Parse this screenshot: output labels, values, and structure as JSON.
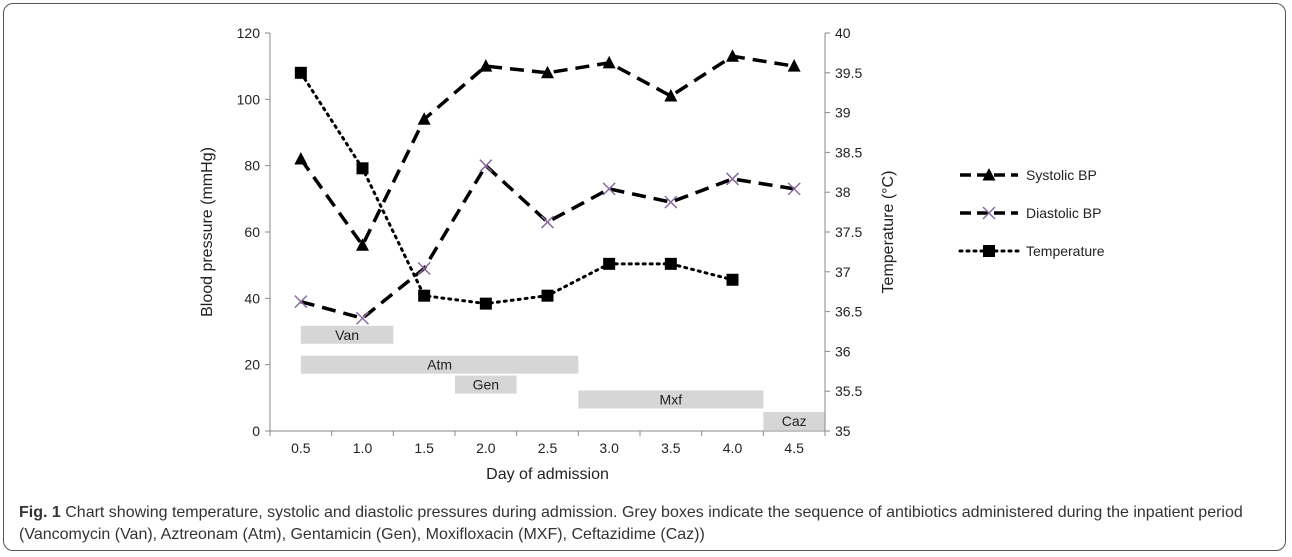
{
  "caption": {
    "label": "Fig. 1",
    "text": "Chart showing temperature, systolic and diastolic pressures during admission. Grey boxes indicate the sequence of antibiotics administered during the inpatient period (Vancomycin (Van), Aztreonam (Atm), Gentamicin (Gen), Moxifloxacin (MXF), Ceftazidime (Caz))"
  },
  "chart_data": {
    "type": "line",
    "title": "",
    "xlabel": "Day of admission",
    "ylabel": "Blood pressure (mmHg)",
    "y2label": "Temperature (°C)",
    "categories": [
      "0.5",
      "1.0",
      "1.5",
      "2.0",
      "2.5",
      "3.0",
      "3.5",
      "4.0",
      "4.5"
    ],
    "ylim": [
      0,
      120
    ],
    "yticks": [
      0,
      20,
      40,
      60,
      80,
      100,
      120
    ],
    "y2lim": [
      35,
      40
    ],
    "y2ticks": [
      "35",
      "35.5",
      "36",
      "36.5",
      "37",
      "37.5",
      "38",
      "38.5",
      "39",
      "39.5",
      "40"
    ],
    "grid": false,
    "legend_position": "right",
    "series": [
      {
        "name": "Systolic BP",
        "axis": "left",
        "marker": "triangle",
        "line": "dashed",
        "values": [
          82,
          56,
          94,
          110,
          108,
          111,
          101,
          113,
          110
        ]
      },
      {
        "name": "Diastolic BP",
        "axis": "left",
        "marker": "x",
        "line": "dashed",
        "values": [
          39,
          34,
          49,
          80,
          63,
          73,
          69,
          76,
          73
        ]
      },
      {
        "name": "Temperature",
        "axis": "right",
        "marker": "square",
        "line": "dotted",
        "values": [
          39.5,
          38.3,
          36.7,
          36.6,
          36.7,
          37.1,
          37.1,
          36.9,
          null
        ]
      }
    ],
    "antibiotic_bars": [
      {
        "label": "Van",
        "start_day": 0.5,
        "end_day": 1.25,
        "level": 29
      },
      {
        "label": "Atm",
        "start_day": 0.5,
        "end_day": 2.75,
        "level": 20
      },
      {
        "label": "Gen",
        "start_day": 1.75,
        "end_day": 2.25,
        "level": 14
      },
      {
        "label": "Mxf",
        "start_day": 2.75,
        "end_day": 4.25,
        "level": 9.5
      },
      {
        "label": "Caz",
        "start_day": 4.25,
        "end_day": 4.75,
        "level": 3
      }
    ],
    "colors": {
      "line": "#000000",
      "diastolic_marker": "#8a6a9e",
      "bar_fill": "#d6d6d6"
    }
  }
}
